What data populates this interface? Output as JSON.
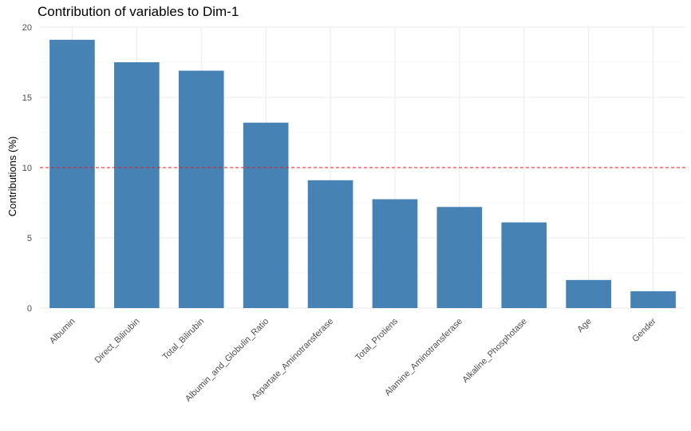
{
  "chart_data": {
    "type": "bar",
    "title": "Contribution of variables to Dim-1",
    "xlabel": "",
    "ylabel": "Contributions (%)",
    "categories": [
      "Albumin",
      "Direct_Bilirubin",
      "Total_Bilirubin",
      "Albumin_and_Globulin_Ratio",
      "Aspartate_Aminotransferase",
      "Total_Protiens",
      "Alamine_Aminotransferase",
      "Alkaline_Phosphotase",
      "Age",
      "Gender"
    ],
    "values": [
      19.1,
      17.5,
      16.9,
      13.2,
      9.1,
      7.75,
      7.2,
      6.1,
      2.0,
      1.2
    ],
    "ylim": [
      0,
      20
    ],
    "yticks": [
      0,
      5,
      10,
      15,
      20
    ],
    "reference_line": 10,
    "grid": true,
    "legend": "none",
    "colors": {
      "bar": "#4682B4",
      "reference_line": "#E41A1C",
      "grid_major": "#EBEBEB",
      "grid_minor": "#F5F5F5"
    }
  }
}
